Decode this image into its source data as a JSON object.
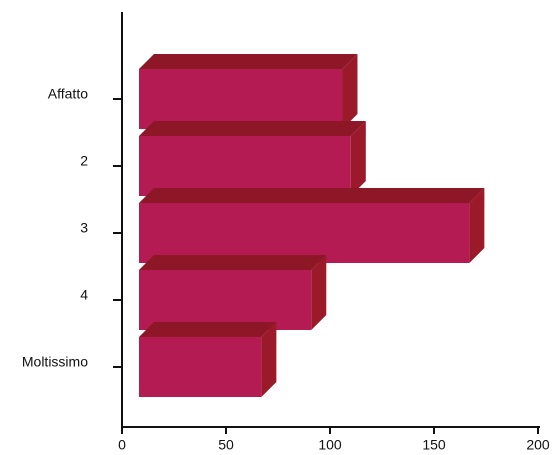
{
  "chart_data": {
    "type": "bar",
    "orientation": "horizontal",
    "three_d": true,
    "categories": [
      "Affatto",
      "2",
      "3",
      "4",
      "Moltissimo"
    ],
    "values": [
      106,
      110,
      167,
      91,
      67
    ],
    "xlim": [
      0,
      200
    ],
    "xticks": [
      0,
      50,
      100,
      150,
      200
    ],
    "tick_labels": [
      "0",
      "50",
      "100",
      "150",
      "200"
    ],
    "grid": false,
    "colors": {
      "bar_front": "#b31b52",
      "bar_top": "#8e1727",
      "bar_side": "#9a1a2a",
      "axis": "#111111"
    }
  }
}
